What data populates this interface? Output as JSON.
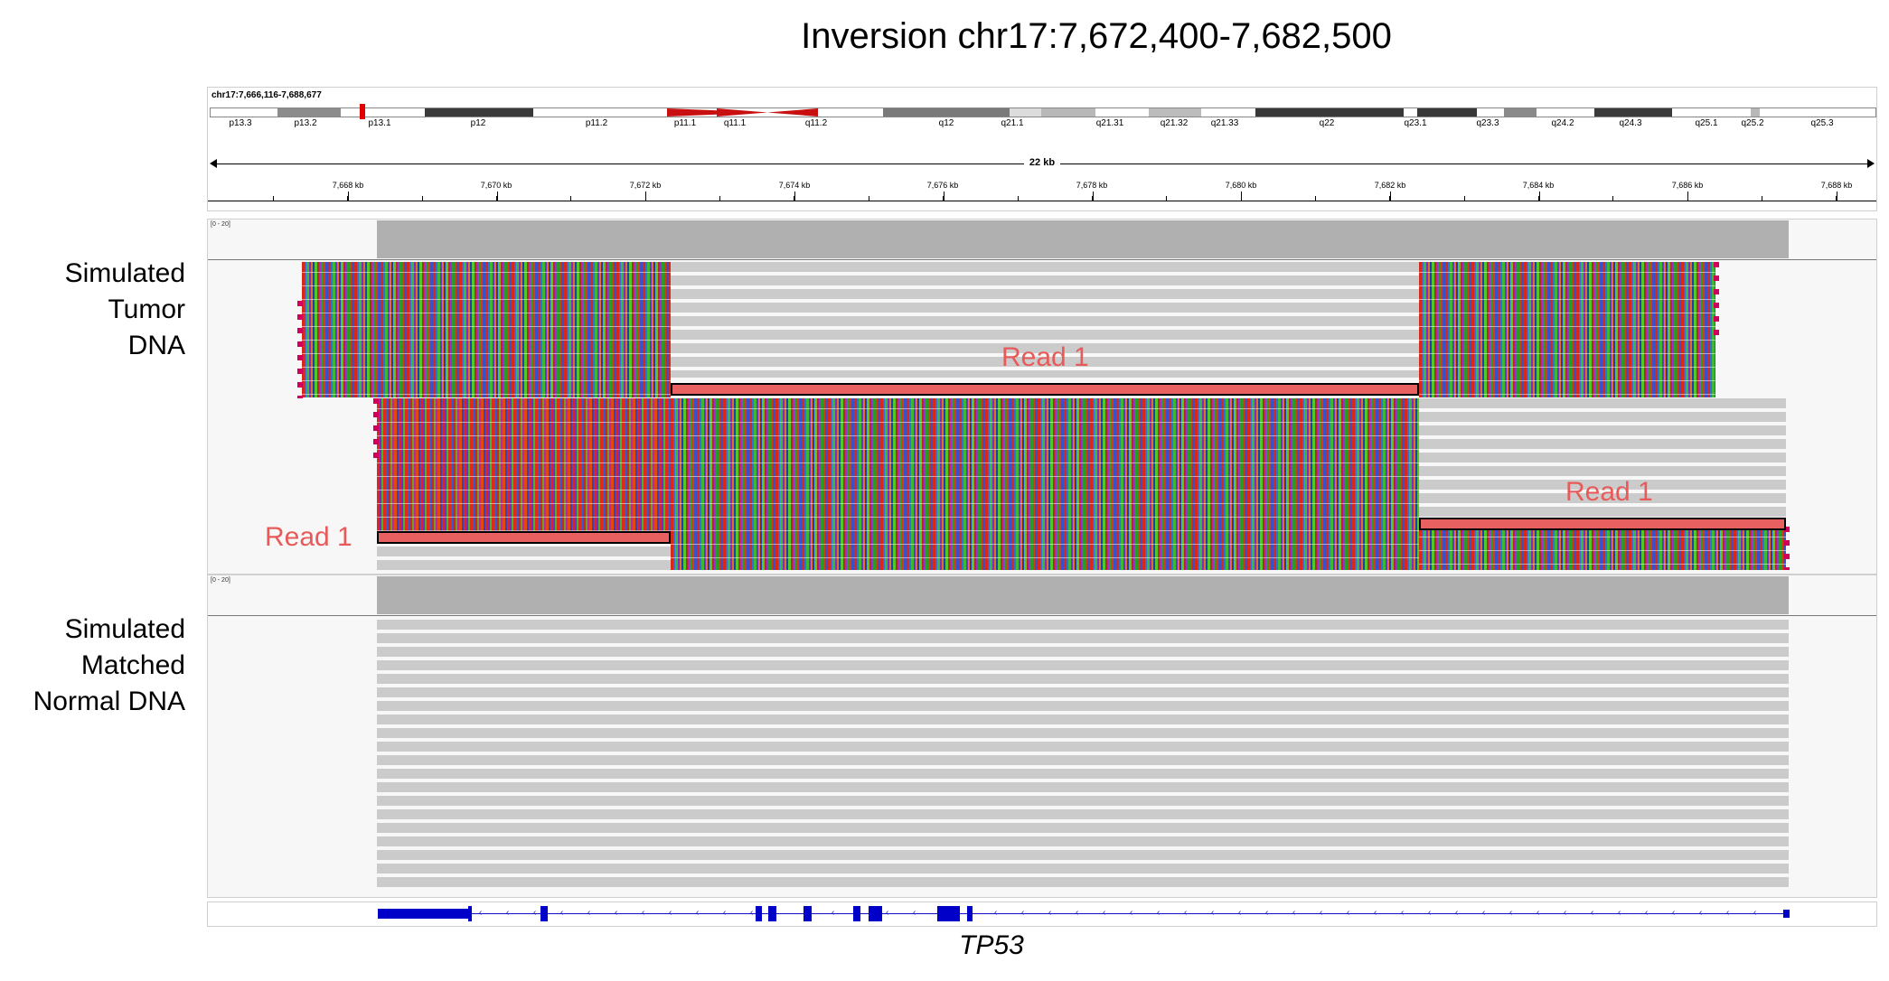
{
  "title": "Inversion chr17:7,672,400-7,682,500",
  "locus": "chr17:7,666,116-7,688,677",
  "span_label": "22 kb",
  "ideogram_bands": [
    "p13.3",
    "p13.2",
    "p13.1",
    "p12",
    "p11.2",
    "p11.1",
    "q11.1",
    "q11.2",
    "q12",
    "q21.1",
    "q21.31",
    "q21.32",
    "q21.33",
    "q22",
    "q23.1",
    "q23.3",
    "q24.2",
    "q24.3",
    "q25.1",
    "q25.2",
    "q25.3"
  ],
  "ruler_ticks": [
    "7,668 kb",
    "7,670 kb",
    "7,672 kb",
    "7,674 kb",
    "7,676 kb",
    "7,678 kb",
    "7,680 kb",
    "7,682 kb",
    "7,684 kb",
    "7,686 kb",
    "7,688 kb"
  ],
  "tracks": {
    "tumor": {
      "label_lines": [
        "Simulated",
        "Tumor",
        "DNA"
      ],
      "coverage_range": "[0 - 20]",
      "read_labels": [
        "Read 1",
        "Read 1",
        "Read 1"
      ]
    },
    "normal": {
      "label_lines": [
        "Simulated",
        "Matched",
        "Normal DNA"
      ],
      "coverage_range": "[0 - 20]"
    }
  },
  "gene": {
    "name": "TP53",
    "color": "#0000c8"
  },
  "colors": {
    "read1_fill": "#e86060",
    "read1_text": "#e85a5a",
    "coverage": "#b0b0b0",
    "aligned_read": "#cbcbcb"
  }
}
